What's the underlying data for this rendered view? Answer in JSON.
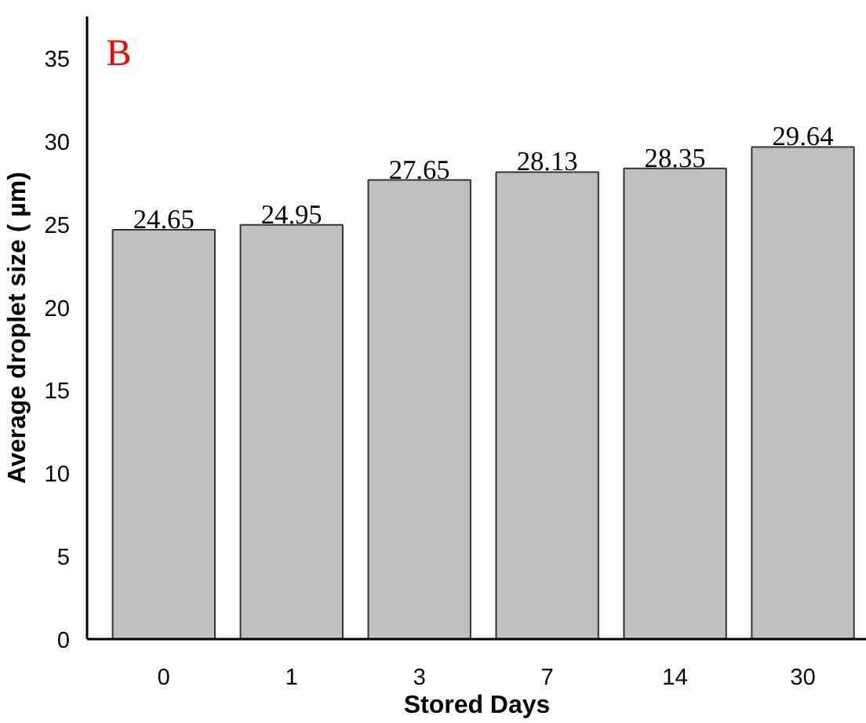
{
  "chart_data": {
    "type": "bar",
    "xlabel": "Stored Days",
    "ylabel": "Average droplet size ( µm)",
    "categories": [
      "0",
      "1",
      "3",
      "7",
      "14",
      "30"
    ],
    "values": [
      24.65,
      24.95,
      27.65,
      28.13,
      28.35,
      29.64
    ],
    "color": "#c0c0c0",
    "data_labels": true,
    "ylim": [
      0,
      37.5
    ],
    "yticks": [
      0,
      5,
      10,
      15,
      20,
      25,
      30,
      35
    ],
    "grid": false,
    "annotations": [
      "B"
    ]
  }
}
